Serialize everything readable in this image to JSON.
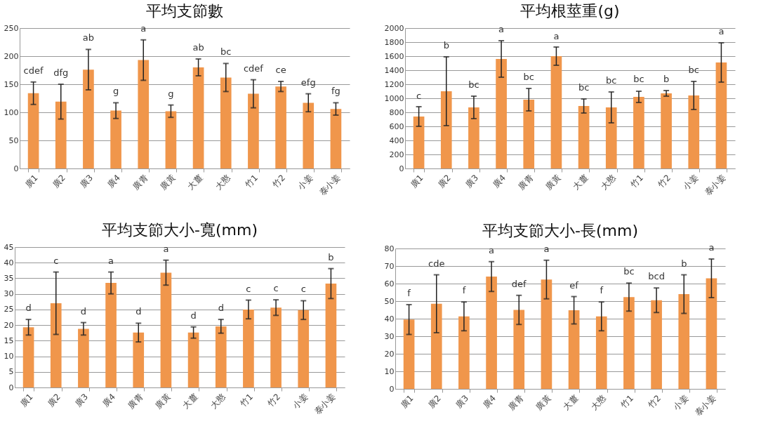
{
  "chart_data": [
    {
      "type": "bar",
      "title": "平均支節數",
      "categories": [
        "廣1",
        "廣2",
        "廣3",
        "廣4",
        "廣青",
        "廣黃",
        "大薑",
        "大憨",
        "竹1",
        "竹2",
        "小姜",
        "泰小姜"
      ],
      "values": [
        134,
        119,
        176,
        103,
        193,
        102,
        180,
        162,
        133,
        146,
        117,
        106
      ],
      "errors": [
        20,
        31,
        36,
        14,
        36,
        11,
        15,
        25,
        25,
        9,
        16,
        11
      ],
      "color": "#f0964b",
      "ylim": [
        0,
        250
      ],
      "yticks": [
        0,
        50,
        100,
        150,
        200,
        250
      ],
      "grid": "y",
      "annotations": [
        {
          "text": "cdef",
          "x": "廣1",
          "y": 154
        },
        {
          "text": "dfg",
          "x": "廣2",
          "y": 150
        },
        {
          "text": "ab",
          "x": "廣3",
          "y": 212
        },
        {
          "text": "g",
          "x": "廣4",
          "y": 117
        },
        {
          "text": "a",
          "x": "廣青",
          "y": 229
        },
        {
          "text": "g",
          "x": "廣黃",
          "y": 113
        },
        {
          "text": "ab",
          "x": "大薑",
          "y": 195
        },
        {
          "text": "bc",
          "x": "大憨",
          "y": 187
        },
        {
          "text": "cdef",
          "x": "竹1",
          "y": 158
        },
        {
          "text": "ce",
          "x": "竹2",
          "y": 155
        },
        {
          "text": "efg",
          "x": "小姜",
          "y": 133
        },
        {
          "text": "fg",
          "x": "泰小姜",
          "y": 117
        }
      ]
    },
    {
      "type": "bar",
      "title": "平均根莖重(g)",
      "categories": [
        "廣1",
        "廣2",
        "廣3",
        "廣4",
        "廣青",
        "廣黃",
        "大薑",
        "大憨",
        "竹1",
        "竹2",
        "小姜",
        "泰小姜"
      ],
      "values": [
        740,
        1100,
        870,
        1560,
        980,
        1600,
        890,
        870,
        1020,
        1070,
        1040,
        1510
      ],
      "errors": [
        140,
        490,
        160,
        260,
        160,
        130,
        100,
        220,
        80,
        40,
        200,
        280
      ],
      "color": "#f0964b",
      "ylim": [
        0,
        2000
      ],
      "yticks": [
        0,
        200,
        400,
        600,
        800,
        1000,
        1200,
        1400,
        1600,
        1800,
        2000
      ],
      "grid": "y",
      "annotations": [
        {
          "text": "c",
          "x": "廣1",
          "y": 875
        },
        {
          "text": "b",
          "x": "廣2",
          "y": 1595
        },
        {
          "text": "bc",
          "x": "廣3",
          "y": 1030
        },
        {
          "text": "a",
          "x": "廣4",
          "y": 1825
        },
        {
          "text": "bc",
          "x": "廣青",
          "y": 1140
        },
        {
          "text": "a",
          "x": "廣黃",
          "y": 1725
        },
        {
          "text": "bc",
          "x": "大薑",
          "y": 990
        },
        {
          "text": "bc",
          "x": "大憨",
          "y": 1090
        },
        {
          "text": "bc",
          "x": "竹1",
          "y": 1110
        },
        {
          "text": "b",
          "x": "竹2",
          "y": 1110
        },
        {
          "text": "bc",
          "x": "小姜",
          "y": 1240
        },
        {
          "text": "a",
          "x": "泰小姜",
          "y": 1790
        }
      ]
    },
    {
      "type": "bar",
      "title": "平均支節大小-寬(mm)",
      "categories": [
        "廣1",
        "廣2",
        "廣3",
        "廣4",
        "廣青",
        "廣黃",
        "大薑",
        "大憨",
        "竹1",
        "竹2",
        "小姜",
        "泰小姜"
      ],
      "values": [
        19.3,
        27,
        18.8,
        33.5,
        17.6,
        36.8,
        17.6,
        19.6,
        25,
        25.6,
        24.8,
        33.3
      ],
      "errors": [
        2.5,
        10,
        2,
        3.5,
        3,
        4,
        1.8,
        2.2,
        3,
        2.5,
        3,
        4.8
      ],
      "color": "#f0964b",
      "ylim": [
        0,
        45
      ],
      "yticks": [
        0,
        5,
        10,
        15,
        20,
        25,
        30,
        35,
        40,
        45
      ],
      "grid": "y",
      "annotations": [
        {
          "text": "d",
          "x": "廣1",
          "y": 21.8
        },
        {
          "text": "c",
          "x": "廣2",
          "y": 37
        },
        {
          "text": "d",
          "x": "廣3",
          "y": 20.8
        },
        {
          "text": "a",
          "x": "廣4",
          "y": 37
        },
        {
          "text": "d",
          "x": "廣青",
          "y": 20.6
        },
        {
          "text": "a",
          "x": "廣黃",
          "y": 40.8
        },
        {
          "text": "d",
          "x": "大薑",
          "y": 19.4
        },
        {
          "text": "d",
          "x": "大憨",
          "y": 21.8
        },
        {
          "text": "c",
          "x": "竹1",
          "y": 28
        },
        {
          "text": "c",
          "x": "竹2",
          "y": 28.1
        },
        {
          "text": "c",
          "x": "小姜",
          "y": 27.8
        },
        {
          "text": "b",
          "x": "泰小姜",
          "y": 38.1
        }
      ]
    },
    {
      "type": "bar",
      "title": "平均支節大小-長(mm)",
      "categories": [
        "廣1",
        "廣2",
        "廣3",
        "廣4",
        "廣青",
        "廣黃",
        "大薑",
        "大憨",
        "竹1",
        "竹2",
        "小姜",
        "泰小姜"
      ],
      "values": [
        39.5,
        48.5,
        41.3,
        64,
        45,
        62.3,
        44.8,
        41.3,
        52.3,
        50.5,
        54,
        63
      ],
      "errors": [
        8.5,
        16.5,
        8.2,
        8.5,
        8.3,
        11,
        7.8,
        8.2,
        8,
        7,
        11,
        11
      ],
      "color": "#f0964b",
      "ylim": [
        0,
        80
      ],
      "yticks": [
        0,
        10,
        20,
        30,
        40,
        50,
        60,
        70,
        80
      ],
      "grid": "y",
      "annotations": [
        {
          "text": "f",
          "x": "廣1",
          "y": 48
        },
        {
          "text": "cde",
          "x": "廣2",
          "y": 65
        },
        {
          "text": "f",
          "x": "廣3",
          "y": 49.5
        },
        {
          "text": "a",
          "x": "廣4",
          "y": 72.5
        },
        {
          "text": "def",
          "x": "廣青",
          "y": 53.3
        },
        {
          "text": "a",
          "x": "廣黃",
          "y": 73.3
        },
        {
          "text": "ef",
          "x": "大薑",
          "y": 52.6
        },
        {
          "text": "f",
          "x": "大憨",
          "y": 49.5
        },
        {
          "text": "bc",
          "x": "竹1",
          "y": 60.3
        },
        {
          "text": "bcd",
          "x": "竹2",
          "y": 57.5
        },
        {
          "text": "b",
          "x": "小姜",
          "y": 65
        },
        {
          "text": "a",
          "x": "泰小姜",
          "y": 74
        }
      ]
    }
  ]
}
